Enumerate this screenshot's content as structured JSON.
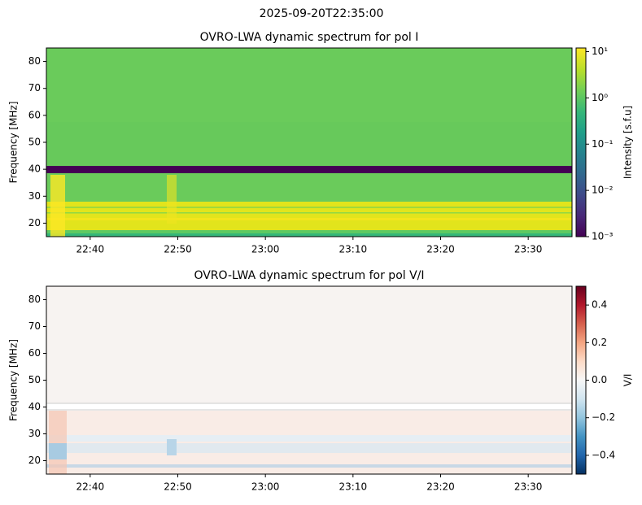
{
  "suptitle": "2025-09-20T22:35:00",
  "chart_data": [
    {
      "type": "heatmap",
      "title": "OVRO-LWA dynamic spectrum for pol I",
      "ylabel": "Frequency [MHz]",
      "xlim": [
        "22:35",
        "23:35"
      ],
      "xticks": [
        "22:40",
        "22:50",
        "23:00",
        "23:10",
        "23:20",
        "23:30"
      ],
      "ylim": [
        15,
        85
      ],
      "yticks": [
        20,
        30,
        40,
        50,
        60,
        70,
        80
      ],
      "colormap": "viridis",
      "color_scale": "log",
      "clim": [
        0.001,
        12
      ],
      "cticks": [
        {
          "value": 0.001,
          "label": "10⁻³"
        },
        {
          "value": 0.01,
          "label": "10⁻²"
        },
        {
          "value": 0.1,
          "label": "10⁻¹"
        },
        {
          "value": 1,
          "label": "10⁰"
        },
        {
          "value": 10,
          "label": "10¹"
        }
      ],
      "clabel": "Intensity [s.f.u]"
    },
    {
      "type": "heatmap",
      "title": "OVRO-LWA dynamic spectrum for pol V/I",
      "ylabel": "Frequency [MHz]",
      "xlim": [
        "22:35",
        "23:35"
      ],
      "xticks": [
        "22:40",
        "22:50",
        "23:00",
        "23:10",
        "23:20",
        "23:30"
      ],
      "ylim": [
        15,
        85
      ],
      "yticks": [
        20,
        30,
        40,
        50,
        60,
        70,
        80
      ],
      "colormap": "RdBu_r",
      "color_scale": "linear",
      "clim": [
        -0.5,
        0.5
      ],
      "cticks": [
        {
          "value": -0.4,
          "label": "−0.4"
        },
        {
          "value": -0.2,
          "label": "−0.2"
        },
        {
          "value": 0,
          "label": "0.0"
        },
        0.2,
        0.4
      ],
      "clabel": "V/I"
    }
  ]
}
